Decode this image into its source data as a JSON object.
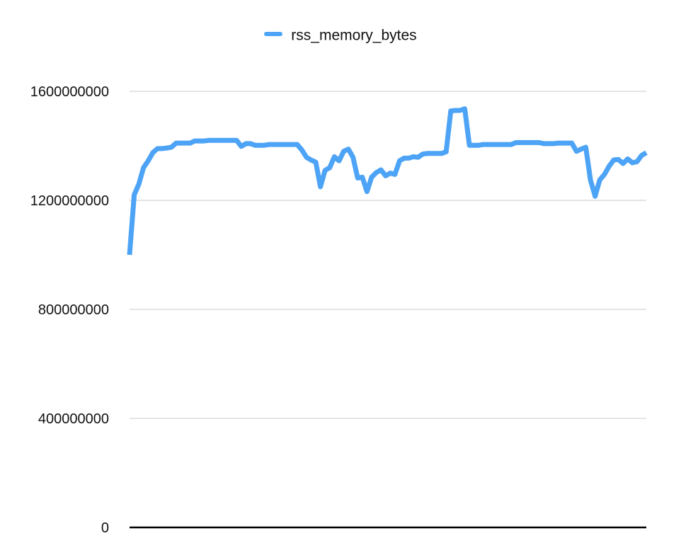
{
  "chart_data": {
    "type": "line",
    "title": "",
    "xlabel": "",
    "ylabel": "",
    "ylim": [
      0,
      1600000000
    ],
    "yticks": [
      "0",
      "400000000",
      "800000000",
      "1200000000",
      "1600000000"
    ],
    "ytick_values": [
      0,
      400000000,
      800000000,
      1200000000,
      1600000000
    ],
    "grid": "horizontal",
    "legend_position": "top-center",
    "series": [
      {
        "name": "rss_memory_bytes",
        "color": "#4da3f5",
        "values": [
          1000000000,
          1220000000,
          1260000000,
          1320000000,
          1345000000,
          1375000000,
          1390000000,
          1390000000,
          1392000000,
          1395000000,
          1410000000,
          1410000000,
          1410000000,
          1410000000,
          1418000000,
          1418000000,
          1418000000,
          1420000000,
          1420000000,
          1420000000,
          1420000000,
          1420000000,
          1420000000,
          1420000000,
          1398000000,
          1408000000,
          1408000000,
          1402000000,
          1402000000,
          1402000000,
          1405000000,
          1405000000,
          1405000000,
          1405000000,
          1405000000,
          1405000000,
          1405000000,
          1385000000,
          1358000000,
          1348000000,
          1340000000,
          1250000000,
          1310000000,
          1320000000,
          1360000000,
          1345000000,
          1380000000,
          1388000000,
          1358000000,
          1282000000,
          1285000000,
          1232000000,
          1285000000,
          1302000000,
          1312000000,
          1290000000,
          1300000000,
          1295000000,
          1345000000,
          1355000000,
          1355000000,
          1360000000,
          1358000000,
          1370000000,
          1372000000,
          1372000000,
          1372000000,
          1372000000,
          1378000000,
          1528000000,
          1530000000,
          1530000000,
          1536000000,
          1402000000,
          1402000000,
          1402000000,
          1405000000,
          1405000000,
          1405000000,
          1405000000,
          1405000000,
          1405000000,
          1405000000,
          1412000000,
          1412000000,
          1412000000,
          1412000000,
          1412000000,
          1412000000,
          1408000000,
          1408000000,
          1408000000,
          1410000000,
          1410000000,
          1410000000,
          1410000000,
          1380000000,
          1388000000,
          1395000000,
          1275000000,
          1215000000,
          1275000000,
          1295000000,
          1325000000,
          1348000000,
          1350000000,
          1335000000,
          1352000000,
          1338000000,
          1342000000,
          1365000000,
          1375000000
        ]
      }
    ]
  }
}
